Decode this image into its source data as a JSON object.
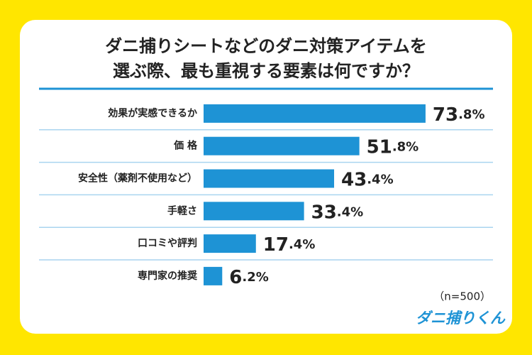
{
  "chart_data": {
    "type": "bar",
    "title": [
      "ダニ捕りシートなどのダニ対策アイテムを",
      "選ぶ際、最も重視する要素は何ですか？"
    ],
    "categories": [
      "効果が実感できるか",
      "価 格",
      "安全性（薬剤不使用など）",
      "手軽さ",
      "口コミや評判",
      "専門家の推奨"
    ],
    "values": [
      73.8,
      51.8,
      43.4,
      33.4,
      17.4,
      6.2
    ],
    "value_labels": [
      "73.8%",
      "51.8%",
      "43.4%",
      "33.4%",
      "17.4%",
      "6.2%"
    ],
    "color": "#1e93d5",
    "note": "（n=500）",
    "brand": "ダニ捕りくん"
  }
}
